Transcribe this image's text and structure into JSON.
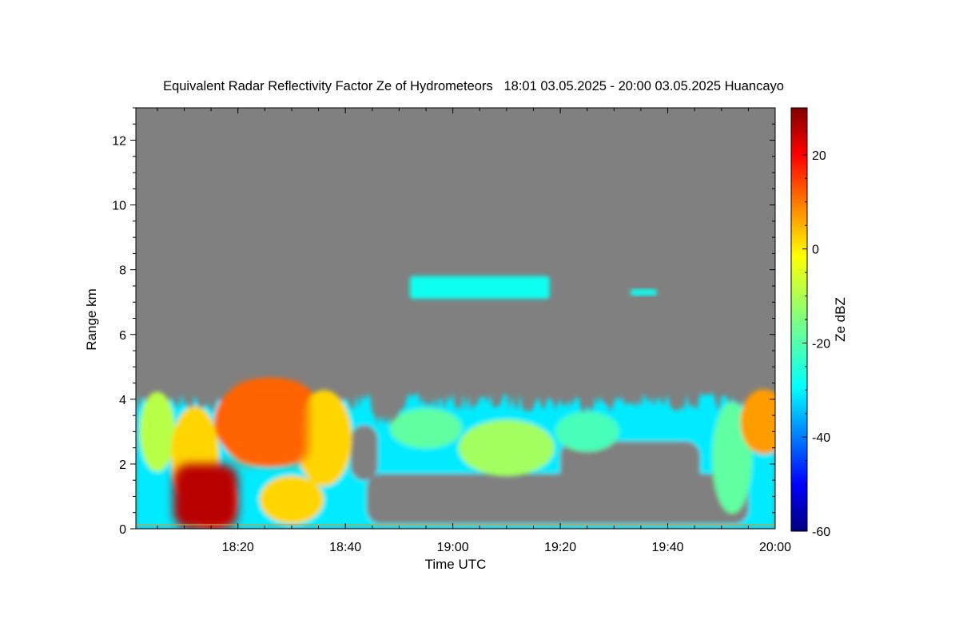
{
  "chart_data": {
    "type": "heatmap",
    "title": "Equivalent Radar Reflectivity Factor Ze of Hydrometeors   18:01 03.05.2025 - 20:00 03.05.2025 Huancayo",
    "xlabel": "Time UTC",
    "ylabel": "Range km",
    "colorbar_label": "Ze dBZ",
    "xlim": [
      "18:01",
      "20:00"
    ],
    "ylim": [
      0,
      13
    ],
    "x_ticks": [
      "18:20",
      "18:40",
      "19:00",
      "19:20",
      "19:40",
      "20:00"
    ],
    "y_ticks": [
      "0",
      "2",
      "4",
      "6",
      "8",
      "10",
      "12"
    ],
    "colorbar_range": [
      -60,
      30
    ],
    "colorbar_ticks": [
      "20",
      "0",
      "-20",
      "-40",
      "-60"
    ],
    "colormap": "jet",
    "background_color": "#808080",
    "features": [
      {
        "name": "lower cloud layer",
        "time_start": "18:01",
        "time_end": "20:00",
        "top_km": 4.6,
        "ze_range_dbz": [
          -45,
          25
        ]
      },
      {
        "name": "convective core",
        "time_start": "18:19",
        "time_end": "18:33",
        "range_km": [
          2.0,
          4.5
        ],
        "ze_dbz": 10
      },
      {
        "name": "precipitation shafts",
        "time_start": "18:08",
        "time_end": "18:20",
        "range_km": [
          0,
          2.0
        ],
        "ze_dbz": 25
      },
      {
        "name": "eastern core",
        "time_start": "19:55",
        "time_end": "20:00",
        "range_km": [
          2.5,
          4.2
        ],
        "ze_dbz": 5
      },
      {
        "name": "upper cloud patch",
        "time_start": "18:52",
        "time_end": "19:18",
        "range_km": [
          7.1,
          7.8
        ],
        "ze_dbz": -25
      },
      {
        "name": "upper cloud patch",
        "time_start": "19:33",
        "time_end": "19:38",
        "range_km": [
          7.2,
          7.4
        ],
        "ze_dbz": -25
      }
    ]
  }
}
